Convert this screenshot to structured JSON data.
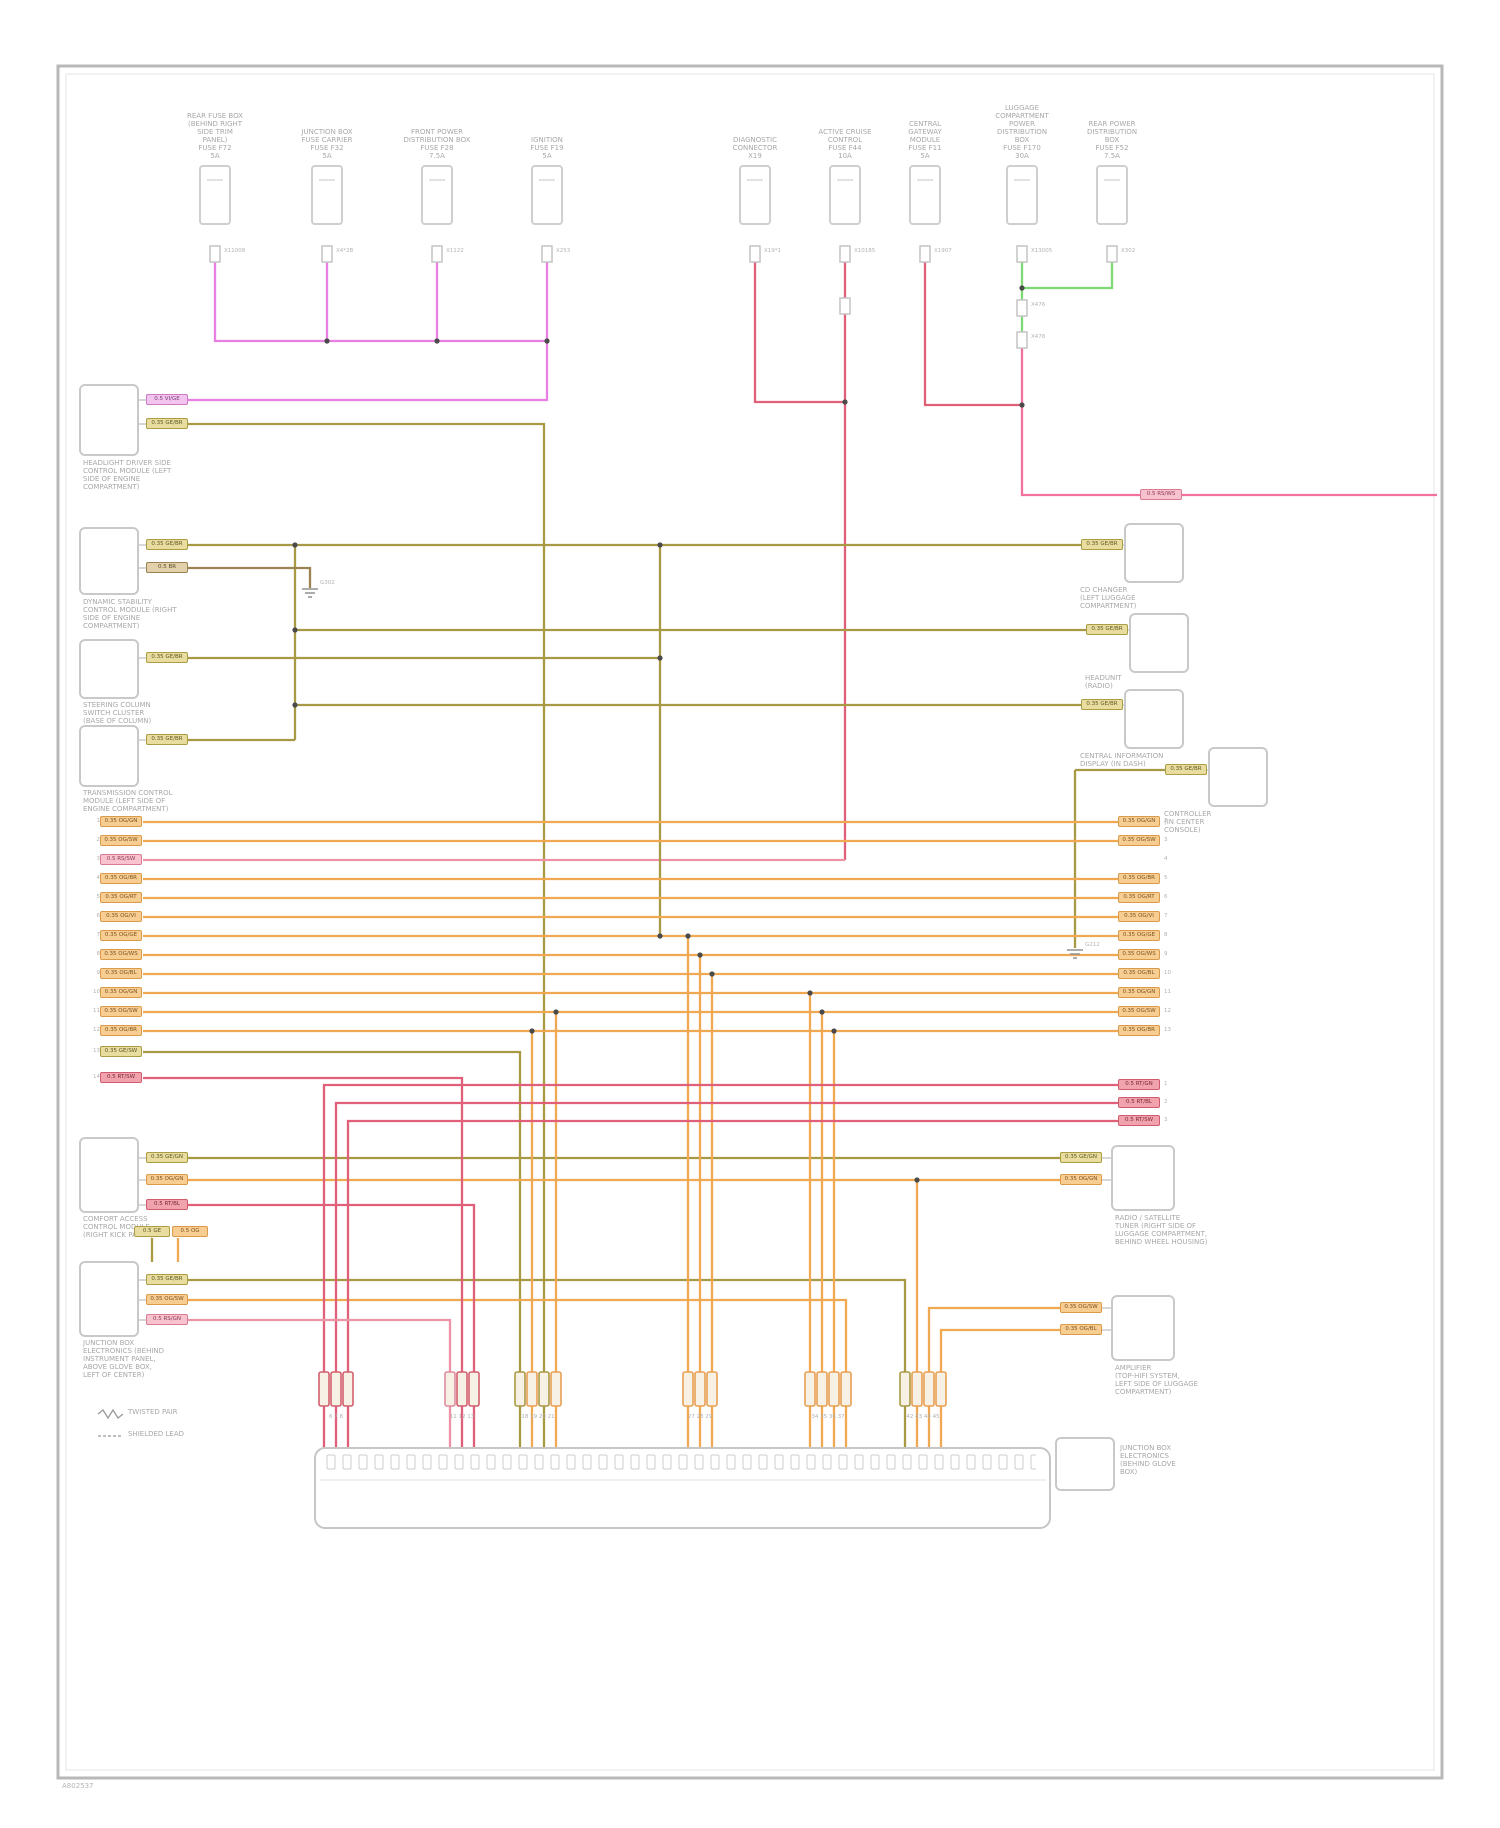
{
  "colors": {
    "magenta": "#ea7fe3",
    "pink": "#f2729f",
    "pink_bus": "#ee93a6",
    "red": "#e0607a",
    "green": "#7fd876",
    "olive": "#a89a45",
    "brown": "#9b8352",
    "orange": "#f0a952",
    "frame": "#b8b8b8",
    "module_stroke": "#c9c9c9",
    "label_text": "#a8a8a8"
  },
  "footer": "A802537",
  "legend": [
    "TWISTED PAIR",
    "SHIELDED LEAD"
  ],
  "top_connectors": [
    {
      "label_lines": [
        "REAR FUSE BOX",
        "(BEHIND RIGHT",
        "SIDE TRIM",
        "PANEL)",
        "FUSE F72",
        "5A"
      ]
    },
    {
      "label_lines": [
        "JUNCTION BOX",
        "FUSE CARRIER",
        "FUSE F32",
        "5A"
      ]
    },
    {
      "label_lines": [
        "FRONT POWER",
        "DISTRIBUTION BOX",
        "FUSE F28",
        "7.5A"
      ]
    },
    {
      "label_lines": [
        "IGNITION",
        "FUSE F19",
        "5A"
      ]
    },
    {
      "label_lines": [
        "DIAGNOSTIC",
        "CONNECTOR",
        "X19"
      ]
    },
    {
      "label_lines": [
        "ACTIVE CRUISE",
        "CONTROL",
        "FUSE F44",
        "10A"
      ]
    },
    {
      "label_lines": [
        "CENTRAL",
        "GATEWAY",
        "MODULE",
        "FUSE F11",
        "5A"
      ]
    },
    {
      "label_lines": [
        "LUGGAGE",
        "COMPARTMENT",
        "POWER",
        "DISTRIBUTION",
        "BOX",
        "FUSE F170",
        "30A"
      ]
    },
    {
      "label_lines": [
        "REAR POWER",
        "DISTRIBUTION",
        "BOX",
        "FUSE F52",
        "7.5A"
      ]
    }
  ],
  "conn_pins": [
    "X11008",
    "X4*2B",
    "X1122",
    "X253",
    "X19*1",
    "X10185",
    "X1907",
    "X13005",
    "X302",
    "X476",
    "X478"
  ],
  "left_modules": [
    {
      "caption_lines": [
        "HEADLIGHT DRIVER SIDE",
        "CONTROL MODULE (LEFT",
        "SIDE OF ENGINE",
        "COMPARTMENT)"
      ]
    },
    {
      "caption_lines": [
        "DYNAMIC STABILITY",
        "CONTROL MODULE (RIGHT",
        "SIDE OF ENGINE",
        "COMPARTMENT)"
      ]
    },
    {
      "caption_lines": [
        "STEERING COLUMN",
        "SWITCH CLUSTER",
        "(BASE OF COLUMN)"
      ]
    },
    {
      "caption_lines": [
        "TRANSMISSION CONTROL",
        "MODULE (LEFT SIDE OF",
        "ENGINE COMPARTMENT)"
      ]
    },
    {
      "caption_lines": [
        "COMFORT ACCESS",
        "CONTROL MODULE",
        "(RIGHT KICK PANEL)"
      ]
    },
    {
      "caption_lines": [
        "JUNCTION BOX",
        "ELECTRONICS (BEHIND",
        "INSTRUMENT PANEL,",
        "ABOVE GLOVE BOX,",
        "LEFT OF CENTER)"
      ]
    }
  ],
  "right_modules": [
    {
      "caption_lines": [
        "CD CHANGER",
        "(LEFT LUGGAGE",
        "COMPARTMENT)"
      ]
    },
    {
      "caption_lines": [
        "HEADUNIT",
        "(RADIO)"
      ]
    },
    {
      "caption_lines": [
        "CENTRAL INFORMATION",
        "DISPLAY (IN DASH)"
      ]
    },
    {
      "caption_lines": [
        "CONTROLLER",
        "(IN CENTER",
        "CONSOLE)"
      ]
    },
    {
      "caption_lines": [
        "RADIO / SATELLITE",
        "TUNER (RIGHT SIDE OF",
        "LUGGAGE COMPARTMENT,",
        "BEHIND WHEEL HOUSING)"
      ]
    },
    {
      "caption_lines": [
        "AMPLIFIER",
        "(TOP-HIFI SYSTEM,",
        "LEFT SIDE OF LUGGAGE",
        "COMPARTMENT)"
      ]
    }
  ],
  "tags": {
    "m1": [
      "0.5 VI/GE",
      "0.35 GE/BR"
    ],
    "m2": [
      "0.35 GE/BR",
      "0.5 BR"
    ],
    "m3": [
      "0.35 GE/BR"
    ],
    "m4": [
      "0.35 GE/BR"
    ],
    "m5": [
      "0.35 GE/GN",
      "0.35 OG/GN",
      "0.5 RT/BL"
    ],
    "m6": [
      "0.35 GE/BR",
      "0.35 OG/SW",
      "0.5 RS/GN"
    ],
    "m6_stub": [
      "0.5 GE",
      "0.5 OG"
    ],
    "r1": [
      "0.35 GE/BR"
    ],
    "r2": [
      "0.35 GE/BR"
    ],
    "r3": [
      "0.35 GE/BR"
    ],
    "r4": [
      "0.35 GE/BR"
    ],
    "r5": [
      "0.35 GE/GN",
      "0.35 OG/GN"
    ],
    "r6": [
      "0.35 OG/SW",
      "0.35 OG/BL"
    ],
    "pink_right": "0.5 RS/WS",
    "bus_l": [
      "0.35 OG/GN",
      "0.35 OG/SW",
      "0.5 RS/SW",
      "0.35 OG/BR",
      "0.35 OG/RT",
      "0.35 OG/VI",
      "0.35 OG/GE",
      "0.35 OG/WS",
      "0.35 OG/BL",
      "0.35 OG/GN",
      "0.35 OG/SW",
      "0.35 OG/BR",
      "0.35 GE/SW",
      "0.5 RT/SW"
    ],
    "bus_r": [
      "0.35 OG/GN",
      "0.35 OG/SW",
      "0.35 OG/BR",
      "0.35 OG/RT",
      "0.35 OG/VI",
      "0.35 OG/GE",
      "0.35 OG/WS",
      "0.35 OG/BL",
      "0.35 OG/GN",
      "0.35 OG/SW",
      "0.35 OG/BR",
      "0.5 RT/GN",
      "0.5 RT/BL",
      "0.5 RT/SW"
    ]
  },
  "pins": {
    "left_col": [
      "1",
      "2",
      "3",
      "4",
      "5",
      "6",
      "7",
      "8",
      "9",
      "10",
      "11",
      "12"
    ],
    "left_extra": [
      "13",
      "14"
    ],
    "right_col": [
      "2",
      "3",
      "4",
      "5",
      "6",
      "7",
      "8",
      "9",
      "10",
      "11",
      "12",
      "13"
    ],
    "right_extra": [
      "1",
      "2",
      "3"
    ]
  },
  "grounds": [
    "G302",
    "G212"
  ],
  "strip": {
    "groups": [
      "6 7 8",
      "11 12 13",
      "18 19 20 21",
      "27 28 29",
      "34 35 36 37",
      "42 43 44 45"
    ],
    "caption_lines": [
      "JUNCTION BOX",
      "ELECTRONICS",
      "(BEHIND GLOVE",
      "BOX)"
    ]
  }
}
